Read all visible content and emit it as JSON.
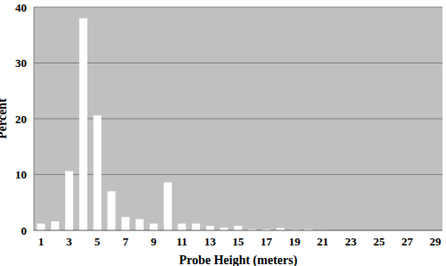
{
  "chart_data": {
    "type": "bar",
    "x_label": "Probe Height (meters)",
    "y_label": "Percent",
    "categories": [
      "1",
      null,
      "3",
      null,
      "5",
      null,
      "7",
      null,
      "9",
      null,
      "11",
      null,
      "13",
      null,
      "15",
      null,
      "17",
      null,
      "19",
      null,
      "21",
      null,
      "23",
      null,
      "25",
      null,
      "27",
      null,
      "29"
    ],
    "values": [
      1.2,
      1.6,
      10.6,
      38,
      20.6,
      7,
      2.4,
      2,
      1.2,
      8.6,
      1.2,
      1.2,
      0.8,
      0.5,
      0.8,
      0.2,
      0.2,
      0.4,
      0.1,
      0.2,
      0.05,
      0,
      0,
      0,
      0,
      0,
      0,
      0,
      0
    ],
    "color": "#ffffff",
    "ylim": [
      0,
      40
    ],
    "yticks": [
      0,
      10,
      20,
      30,
      40
    ],
    "grid": true
  }
}
